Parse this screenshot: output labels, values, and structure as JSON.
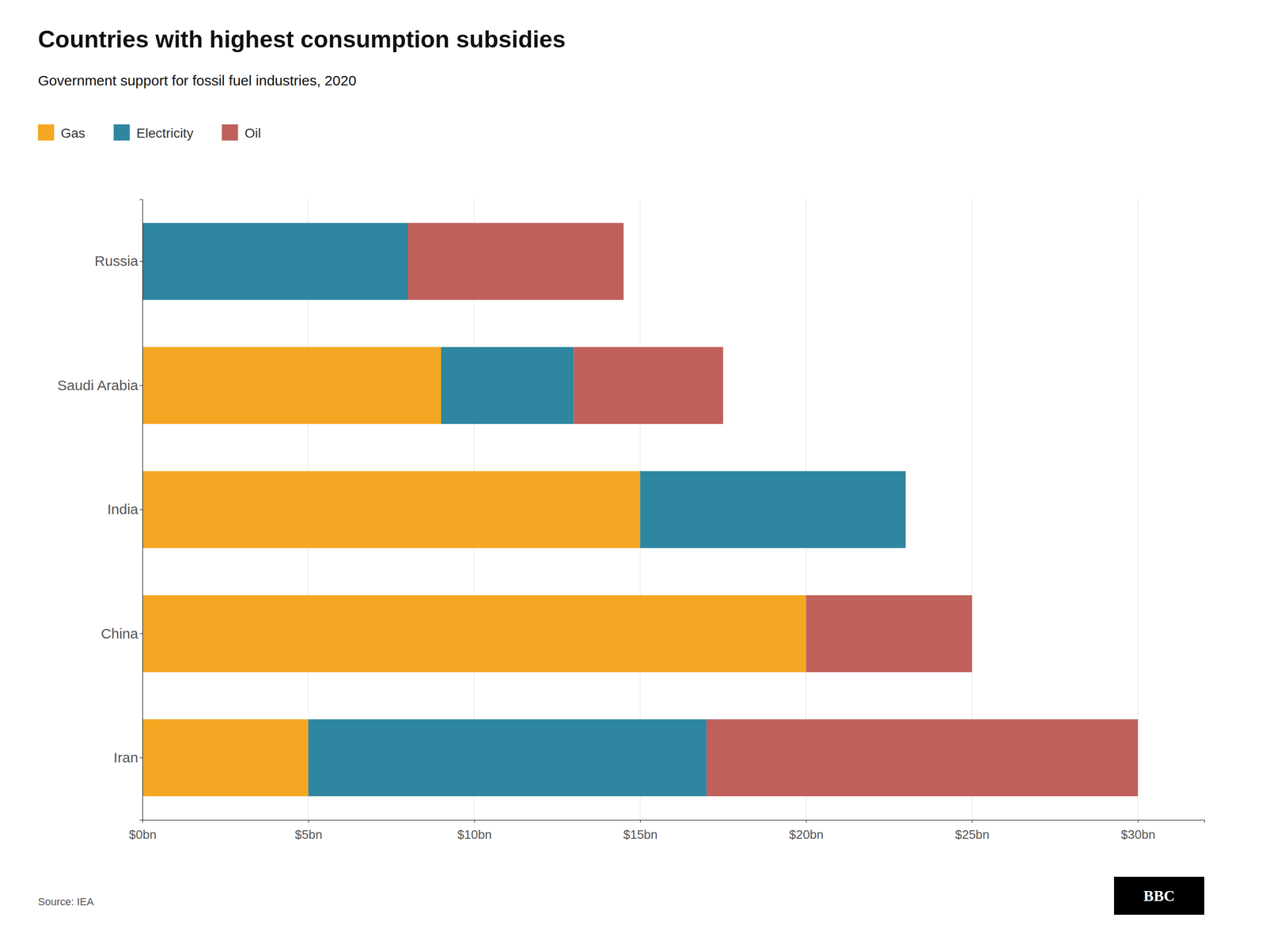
{
  "chart_data": {
    "type": "bar",
    "orientation": "horizontal",
    "stacked": true,
    "title": "Countries with highest consumption subsidies",
    "subtitle": "Government support for fossil fuel industries, 2020",
    "categories": [
      "Iran",
      "China",
      "India",
      "Saudi Arabia",
      "Russia"
    ],
    "series": [
      {
        "name": "Gas",
        "color": "#F5A623",
        "values": [
          5.0,
          20.0,
          15.0,
          9.0,
          0.0
        ]
      },
      {
        "name": "Electricity",
        "color": "#2E86A0",
        "values": [
          12.0,
          0.0,
          8.0,
          4.0,
          8.0
        ]
      },
      {
        "name": "Oil",
        "color": "#C0605A",
        "values": [
          13.0,
          5.0,
          0.0,
          4.5,
          6.5
        ]
      }
    ],
    "xlim": [
      0,
      32
    ],
    "xticks": [
      {
        "value": 0,
        "label": "$0bn"
      },
      {
        "value": 5,
        "label": "$5bn"
      },
      {
        "value": 10,
        "label": "$10bn"
      },
      {
        "value": 15,
        "label": "$15bn"
      },
      {
        "value": 20,
        "label": "$20bn"
      },
      {
        "value": 25,
        "label": "$25bn"
      },
      {
        "value": 30,
        "label": "$30bn"
      }
    ],
    "grid": true,
    "legend": "top",
    "annotations": [
      "Source: IEA",
      "BBC"
    ]
  }
}
